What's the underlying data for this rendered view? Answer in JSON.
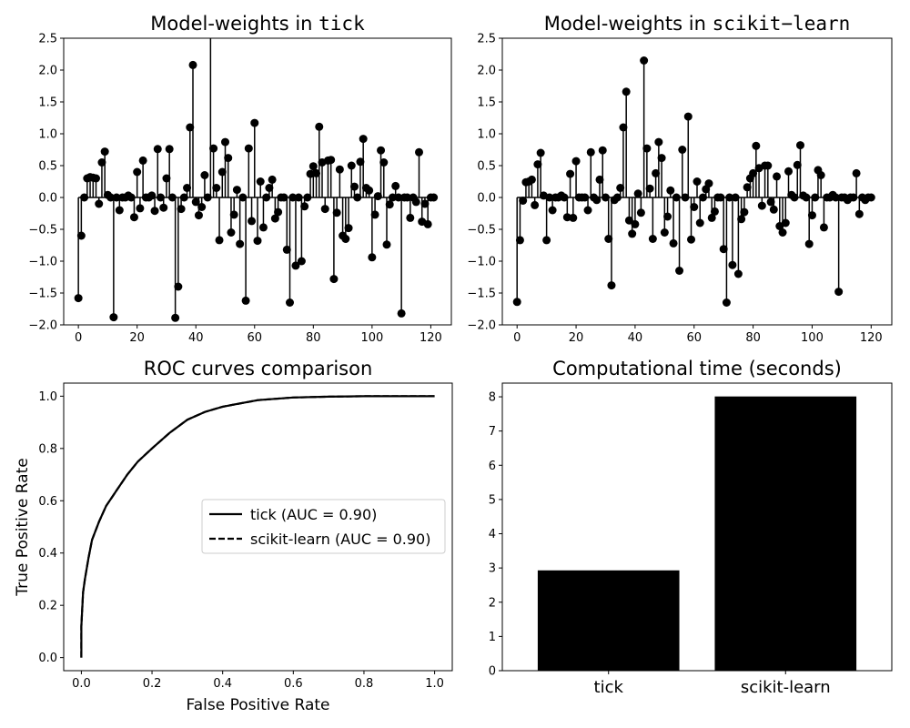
{
  "chart_data": [
    {
      "type": "stem",
      "title_prefix": "Model-weights in ",
      "title_code": "tick",
      "xlim": [
        -5,
        127
      ],
      "ylim": [
        -2.0,
        2.5
      ],
      "xticks": [
        0,
        20,
        40,
        60,
        80,
        100,
        120
      ],
      "yticks": [
        -2.0,
        -1.5,
        -1.0,
        -0.5,
        0.0,
        0.5,
        1.0,
        1.5,
        2.0,
        2.5
      ],
      "ytick_labels": [
        "−2.0",
        "−1.5",
        "−1.0",
        "−0.5",
        "0.0",
        "0.5",
        "1.0",
        "1.5",
        "2.0",
        "2.5"
      ],
      "xtick_labels": [
        "0",
        "20",
        "40",
        "60",
        "80",
        "100",
        "120"
      ],
      "values": [
        -1.58,
        -0.6,
        0.0,
        0.3,
        0.32,
        0.31,
        0.3,
        -0.1,
        0.55,
        0.72,
        0.04,
        0.0,
        -1.88,
        0.0,
        -0.2,
        0.0,
        0.0,
        0.03,
        0.0,
        -0.31,
        0.4,
        -0.17,
        0.58,
        0.0,
        0.0,
        0.03,
        -0.21,
        0.76,
        0.0,
        -0.16,
        0.3,
        0.76,
        0.0,
        -1.89,
        -1.4,
        -0.18,
        0.0,
        0.15,
        1.1,
        2.08,
        -0.07,
        -0.28,
        -0.15,
        0.35,
        0.0,
        2.62,
        0.77,
        0.15,
        -0.67,
        0.4,
        0.87,
        0.62,
        -0.55,
        -0.27,
        0.12,
        -0.73,
        0.0,
        -1.62,
        0.77,
        -0.37,
        1.17,
        -0.68,
        0.25,
        -0.47,
        0.0,
        0.15,
        0.28,
        -0.33,
        -0.23,
        0.0,
        0.0,
        -0.82,
        -1.65,
        0.0,
        -1.07,
        0.0,
        -1.0,
        -0.14,
        0.0,
        0.37,
        0.49,
        0.38,
        1.11,
        0.55,
        -0.18,
        0.58,
        0.59,
        -1.28,
        -0.24,
        0.44,
        -0.6,
        -0.65,
        -0.48,
        0.5,
        0.17,
        0.0,
        0.56,
        0.92,
        0.15,
        0.11,
        -0.94,
        -0.27,
        0.02,
        0.74,
        0.55,
        -0.74,
        -0.11,
        0.0,
        0.18,
        0.0,
        -1.82,
        0.0,
        0.0,
        -0.32,
        0.0,
        -0.07,
        0.71,
        -0.38,
        -0.1,
        -0.42,
        0.0,
        0.0
      ]
    },
    {
      "type": "stem",
      "title_prefix": "Model-weights in ",
      "title_code": "scikit−learn",
      "xlim": [
        -5,
        127
      ],
      "ylim": [
        -2.0,
        2.5
      ],
      "xticks": [
        0,
        20,
        40,
        60,
        80,
        100,
        120
      ],
      "yticks": [
        -2.0,
        -1.5,
        -1.0,
        -0.5,
        0.0,
        0.5,
        1.0,
        1.5,
        2.0,
        2.5
      ],
      "ytick_labels": [
        "−2.0",
        "−1.5",
        "−1.0",
        "−0.5",
        "0.0",
        "0.5",
        "1.0",
        "1.5",
        "2.0",
        "2.5"
      ],
      "xtick_labels": [
        "0",
        "20",
        "40",
        "60",
        "80",
        "100",
        "120"
      ],
      "values": [
        -1.64,
        -0.67,
        -0.05,
        0.24,
        0.25,
        0.28,
        -0.12,
        0.52,
        0.7,
        0.03,
        -0.67,
        0.0,
        -0.2,
        0.0,
        0.0,
        0.03,
        0.0,
        -0.31,
        0.37,
        -0.32,
        0.57,
        0.0,
        0.0,
        0.0,
        -0.2,
        0.71,
        0.0,
        -0.04,
        0.28,
        0.74,
        0.0,
        -0.65,
        -1.38,
        -0.04,
        0.0,
        0.15,
        1.1,
        1.66,
        -0.36,
        -0.57,
        -0.42,
        0.06,
        -0.24,
        2.15,
        0.77,
        0.14,
        -0.65,
        0.38,
        0.87,
        0.62,
        -0.55,
        -0.3,
        0.11,
        -0.72,
        0.0,
        -1.15,
        0.75,
        0.0,
        1.27,
        -0.66,
        -0.15,
        0.25,
        -0.4,
        0.0,
        0.13,
        0.22,
        -0.32,
        -0.22,
        0.0,
        0.0,
        -0.81,
        -1.65,
        0.0,
        -1.06,
        0.0,
        -1.2,
        -0.34,
        -0.23,
        0.16,
        0.3,
        0.38,
        0.81,
        0.46,
        -0.13,
        0.5,
        0.5,
        -0.07,
        -0.19,
        0.33,
        -0.45,
        -0.55,
        -0.4,
        0.41,
        0.04,
        0.0,
        0.51,
        0.82,
        0.03,
        0.0,
        -0.73,
        -0.28,
        0.0,
        0.43,
        0.35,
        -0.47,
        0.0,
        0.0,
        0.04,
        0.0,
        -1.48,
        0.0,
        0.0,
        -0.04,
        0.0,
        0.0,
        0.38,
        -0.26,
        0.0,
        -0.04,
        0.0,
        0.0
      ]
    },
    {
      "type": "line",
      "title": "ROC curves comparison",
      "xlabel": "False Positive Rate",
      "ylabel": "True Positive Rate",
      "xlim": [
        -0.05,
        1.05
      ],
      "ylim": [
        -0.05,
        1.05
      ],
      "xticks": [
        0.0,
        0.2,
        0.4,
        0.6,
        0.8,
        1.0
      ],
      "yticks": [
        0.0,
        0.2,
        0.4,
        0.6,
        0.8,
        1.0
      ],
      "xtick_labels": [
        "0.0",
        "0.2",
        "0.4",
        "0.6",
        "0.8",
        "1.0"
      ],
      "ytick_labels": [
        "0.0",
        "0.2",
        "0.4",
        "0.6",
        "0.8",
        "1.0"
      ],
      "legend_position": "center-right",
      "series": [
        {
          "name": "tick (AUC = 0.90)",
          "style": "solid",
          "x": [
            0.0,
            0.0,
            0.005,
            0.01,
            0.02,
            0.03,
            0.05,
            0.07,
            0.1,
            0.13,
            0.16,
            0.2,
            0.25,
            0.3,
            0.35,
            0.4,
            0.5,
            0.6,
            0.7,
            0.8,
            0.9,
            1.0
          ],
          "y": [
            0.0,
            0.12,
            0.25,
            0.3,
            0.38,
            0.45,
            0.52,
            0.58,
            0.64,
            0.7,
            0.75,
            0.8,
            0.86,
            0.91,
            0.94,
            0.96,
            0.985,
            0.995,
            0.998,
            1.0,
            1.0,
            1.0
          ]
        },
        {
          "name": "scikit-learn (AUC = 0.90)",
          "style": "dashed",
          "x": [
            0.0,
            0.0,
            0.005,
            0.01,
            0.02,
            0.03,
            0.05,
            0.07,
            0.1,
            0.13,
            0.16,
            0.2,
            0.25,
            0.3,
            0.35,
            0.4,
            0.5,
            0.6,
            0.7,
            0.8,
            0.9,
            1.0
          ],
          "y": [
            0.0,
            0.12,
            0.25,
            0.3,
            0.38,
            0.45,
            0.52,
            0.58,
            0.64,
            0.7,
            0.75,
            0.8,
            0.86,
            0.91,
            0.94,
            0.96,
            0.985,
            0.995,
            0.998,
            1.0,
            1.0,
            1.0
          ]
        }
      ]
    },
    {
      "type": "bar",
      "title": "Computational time (seconds)",
      "categories": [
        "tick",
        "scikit-learn"
      ],
      "values": [
        2.93,
        8.01
      ],
      "ylim": [
        0,
        8.4
      ],
      "yticks": [
        0,
        1,
        2,
        3,
        4,
        5,
        6,
        7,
        8
      ],
      "ytick_labels": [
        "0",
        "1",
        "2",
        "3",
        "4",
        "5",
        "6",
        "7",
        "8"
      ]
    }
  ]
}
